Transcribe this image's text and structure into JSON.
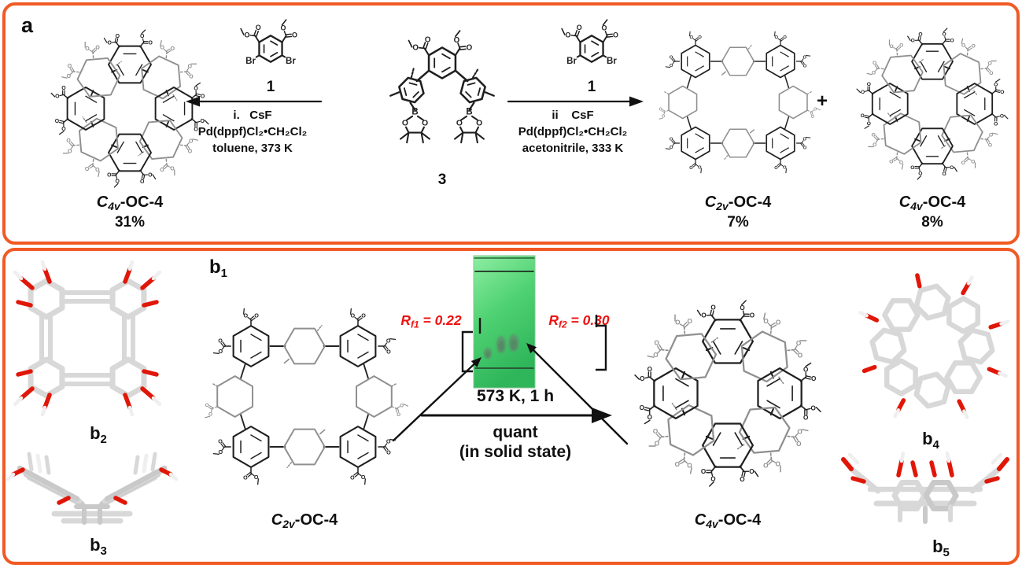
{
  "colors": {
    "panel_border": "#f15a24",
    "red_label": "#ee1111",
    "bond_black": "#1f1f1f",
    "bond_gray": "#8f8f8f"
  },
  "atoms": {
    "oxygen": "O",
    "bromine": "Br",
    "boron": "B"
  },
  "panel_a": {
    "label": "a",
    "left_product": {
      "c": "C",
      "sub": "4v",
      "rest": "-OC-4",
      "yield": "31%"
    },
    "reagent_left_num": "1",
    "cond_left": {
      "line1": "i.   CsF",
      "line2": "Pd(dppf)Cl₂•CH₂Cl₂",
      "line3": "toluene, 373 K"
    },
    "compound_num": "3",
    "reagent_right_num": "1",
    "cond_right": {
      "line1": "ii    CsF",
      "line2": "Pd(dppf)Cl₂•CH₂Cl₂",
      "line3": "acetonitrile, 333 K"
    },
    "product1": {
      "c": "C",
      "sub": "2v",
      "rest": "-OC-4",
      "yield": "7%"
    },
    "plus": "+",
    "product2": {
      "c": "C",
      "sub": "4v",
      "rest": "-OC-4",
      "yield": "8%"
    }
  },
  "panel_b": {
    "label": {
      "prefix": "b",
      "sub": "1"
    },
    "b2": {
      "prefix": "b",
      "sub": "2"
    },
    "b3": {
      "prefix": "b",
      "sub": "3"
    },
    "b4": {
      "prefix": "b",
      "sub": "4"
    },
    "b5": {
      "prefix": "b",
      "sub": "5"
    },
    "reactant": {
      "c": "C",
      "sub": "2v",
      "rest": "-OC-4"
    },
    "product": {
      "c": "C",
      "sub": "4v",
      "rest": "-OC-4"
    },
    "rf1": {
      "r": "R",
      "sub": "f1",
      "eq": " = 0.22"
    },
    "rf2": {
      "r": "R",
      "sub": "f2",
      "eq": " = 0.30"
    },
    "arrow_top": "573 K, 1 h",
    "arrow_bottom1": "quant",
    "arrow_bottom2": "(in solid state)"
  }
}
